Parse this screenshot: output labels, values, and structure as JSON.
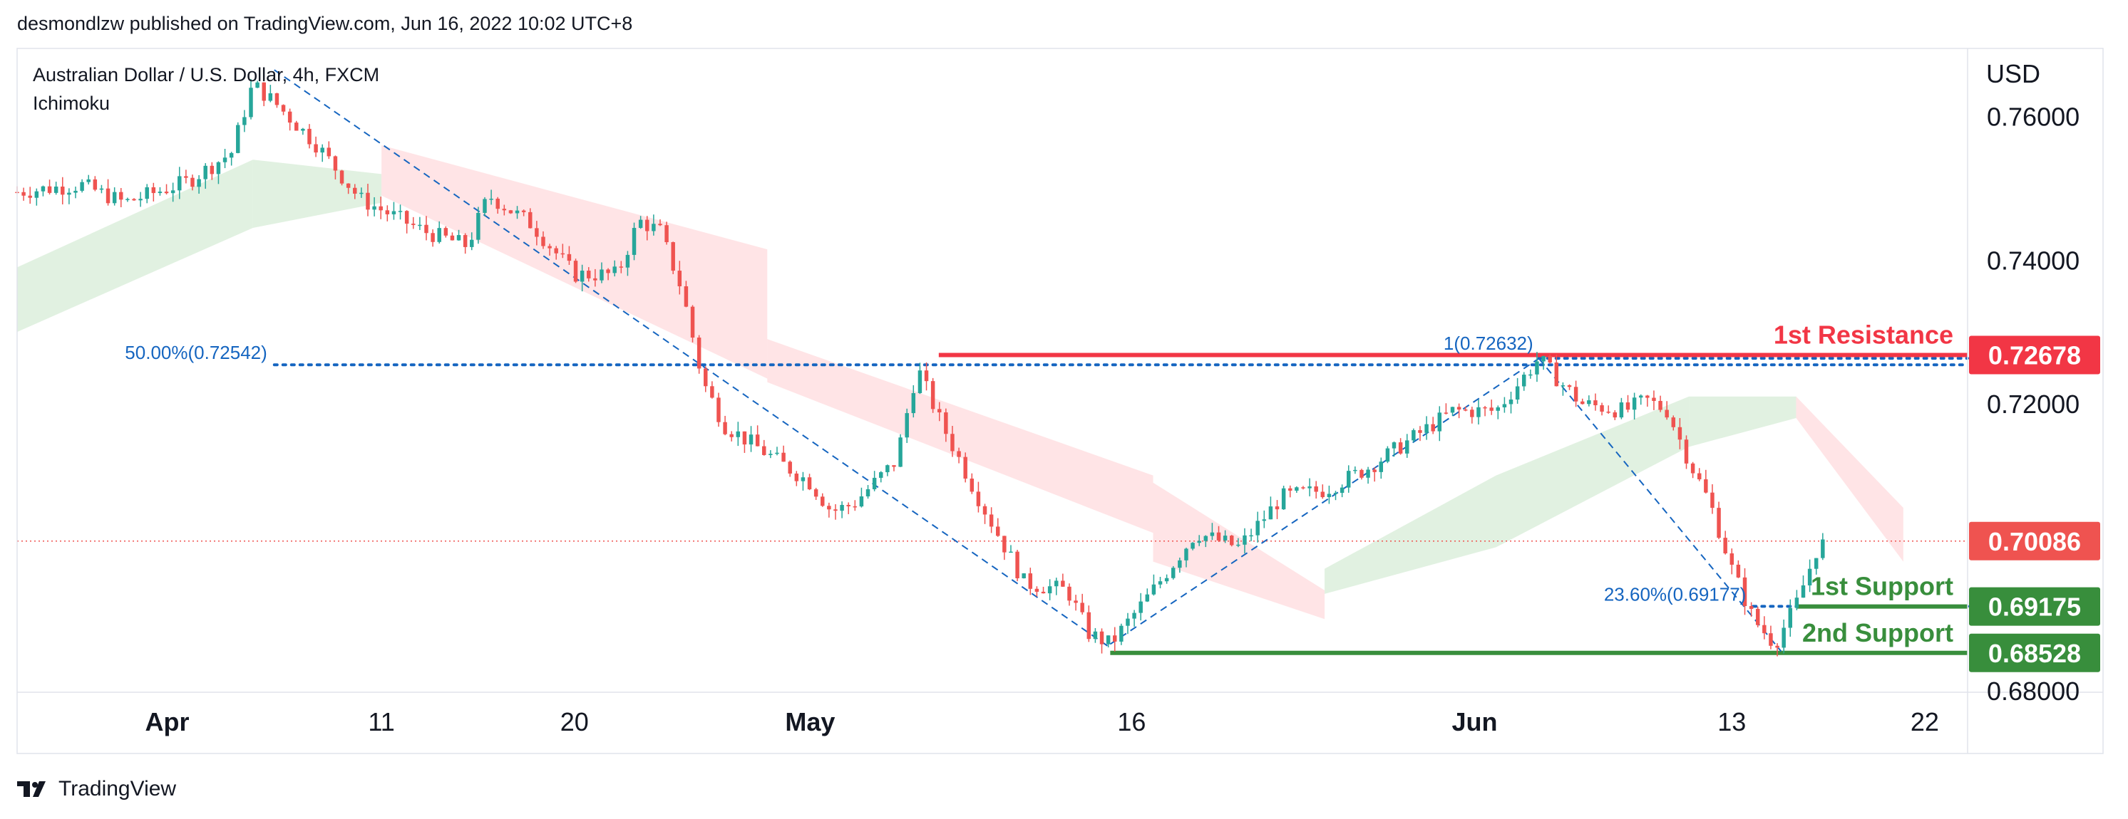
{
  "header": {
    "publisher": "desmondlzw published on TradingView.com, Jun 16, 2022 10:02 UTC+8",
    "symbol": "Australian Dollar / U.S. Dollar, 4h, FXCM",
    "indicator": "Ichimoku"
  },
  "footer": {
    "brand": "TradingView",
    "logo_icon": "tradingview-logo-icon"
  },
  "colors": {
    "up": "#26a69a",
    "down": "#ef5350",
    "resistance": "#f23645",
    "support": "#388e3c",
    "fib": "#1565c0",
    "cloud_bull": "#c8e6c9",
    "cloud_bear": "#ffcdd2",
    "text": "#131722",
    "grid": "#e0e3eb"
  },
  "chart_data": {
    "type": "candlestick",
    "title": "Australian Dollar / U.S. Dollar, 4h, FXCM",
    "y_axis_label": "USD",
    "ylim": [
      0.6798,
      0.7695
    ],
    "xlim_days": [
      -7,
      84
    ],
    "y_ticks": [
      "0.76000",
      "0.74000",
      "0.72000",
      "0.68000"
    ],
    "x_ticks": [
      {
        "label": "Apr",
        "day": 0,
        "bold": true
      },
      {
        "label": "11",
        "day": 10,
        "bold": false
      },
      {
        "label": "20",
        "day": 19,
        "bold": false
      },
      {
        "label": "May",
        "day": 30,
        "bold": true
      },
      {
        "label": "16",
        "day": 45,
        "bold": false
      },
      {
        "label": "Jun",
        "day": 61,
        "bold": true
      },
      {
        "label": "13",
        "day": 73,
        "bold": false
      },
      {
        "label": "22",
        "day": 82,
        "bold": false
      }
    ],
    "price_path": [
      {
        "day": -7,
        "price": 0.7495
      },
      {
        "day": -4,
        "price": 0.7505
      },
      {
        "day": -2,
        "price": 0.748
      },
      {
        "day": 1,
        "price": 0.751
      },
      {
        "day": 3,
        "price": 0.755
      },
      {
        "day": 4,
        "price": 0.7645
      },
      {
        "day": 5,
        "price": 0.762
      },
      {
        "day": 7,
        "price": 0.756
      },
      {
        "day": 9,
        "price": 0.7485
      },
      {
        "day": 12,
        "price": 0.744
      },
      {
        "day": 14,
        "price": 0.742
      },
      {
        "day": 15,
        "price": 0.749
      },
      {
        "day": 17,
        "price": 0.745
      },
      {
        "day": 19,
        "price": 0.738
      },
      {
        "day": 21,
        "price": 0.738
      },
      {
        "day": 22,
        "price": 0.7455
      },
      {
        "day": 23,
        "price": 0.744
      },
      {
        "day": 24,
        "price": 0.736
      },
      {
        "day": 25,
        "price": 0.723
      },
      {
        "day": 26,
        "price": 0.717
      },
      {
        "day": 28,
        "price": 0.713
      },
      {
        "day": 30,
        "price": 0.709
      },
      {
        "day": 31,
        "price": 0.705
      },
      {
        "day": 32,
        "price": 0.706
      },
      {
        "day": 34,
        "price": 0.712
      },
      {
        "day": 35,
        "price": 0.725
      },
      {
        "day": 36,
        "price": 0.718
      },
      {
        "day": 38,
        "price": 0.706
      },
      {
        "day": 40,
        "price": 0.695
      },
      {
        "day": 42,
        "price": 0.694
      },
      {
        "day": 43,
        "price": 0.688
      },
      {
        "day": 44,
        "price": 0.6865
      },
      {
        "day": 46,
        "price": 0.694
      },
      {
        "day": 48,
        "price": 0.702
      },
      {
        "day": 50,
        "price": 0.7
      },
      {
        "day": 52,
        "price": 0.707
      },
      {
        "day": 54,
        "price": 0.708
      },
      {
        "day": 56,
        "price": 0.711
      },
      {
        "day": 58,
        "price": 0.715
      },
      {
        "day": 60,
        "price": 0.719
      },
      {
        "day": 62,
        "price": 0.719
      },
      {
        "day": 64,
        "price": 0.7263
      },
      {
        "day": 65,
        "price": 0.723
      },
      {
        "day": 66,
        "price": 0.72
      },
      {
        "day": 68,
        "price": 0.719
      },
      {
        "day": 69,
        "price": 0.7205
      },
      {
        "day": 70,
        "price": 0.719
      },
      {
        "day": 71,
        "price": 0.712
      },
      {
        "day": 72,
        "price": 0.706
      },
      {
        "day": 73,
        "price": 0.697
      },
      {
        "day": 74,
        "price": 0.69
      },
      {
        "day": 75,
        "price": 0.6865
      },
      {
        "day": 76,
        "price": 0.692
      },
      {
        "day": 77,
        "price": 0.7
      },
      {
        "day": 77.5,
        "price": 0.7009
      }
    ],
    "cloud": [
      {
        "start": -7,
        "end": 4,
        "type": "bull",
        "top": [
          0.739,
          0.754
        ],
        "bottom": [
          0.73,
          0.7445
        ]
      },
      {
        "start": 4,
        "end": 10,
        "type": "bull",
        "top": [
          0.754,
          0.752
        ],
        "bottom": [
          0.7445,
          0.748
        ]
      },
      {
        "start": 10,
        "end": 28,
        "type": "bear",
        "top": [
          0.756,
          0.7415
        ],
        "bottom": [
          0.749,
          0.7235
        ]
      },
      {
        "start": 28,
        "end": 46,
        "type": "bear",
        "top": [
          0.729,
          0.71
        ],
        "bottom": [
          0.723,
          0.702
        ]
      },
      {
        "start": 46,
        "end": 54,
        "type": "bear",
        "top": [
          0.709,
          0.694
        ],
        "bottom": [
          0.698,
          0.69
        ]
      },
      {
        "start": 54,
        "end": 62,
        "type": "bull",
        "top": [
          0.697,
          0.71
        ],
        "bottom": [
          0.6935,
          0.7
        ]
      },
      {
        "start": 62,
        "end": 71,
        "type": "bull",
        "top": [
          0.71,
          0.721
        ],
        "bottom": [
          0.7,
          0.714
        ]
      },
      {
        "start": 71,
        "end": 76,
        "type": "bull",
        "top": [
          0.721,
          0.721
        ],
        "bottom": [
          0.714,
          0.718
        ]
      },
      {
        "start": 76,
        "end": 81,
        "type": "bear",
        "top": [
          0.721,
          0.7055
        ],
        "bottom": [
          0.718,
          0.698
        ]
      }
    ],
    "levels": [
      {
        "name": "1st Resistance",
        "value": "0.72678",
        "price": 0.72678,
        "style": "resistance",
        "x_start": 36
      },
      {
        "name": "1st Support",
        "value": "0.69175",
        "price": 0.69175,
        "style": "support",
        "x_start": 76
      },
      {
        "name": "2nd Support",
        "value": "0.68528",
        "price": 0.68528,
        "style": "support",
        "x_start": 44
      }
    ],
    "current_price": {
      "value": "0.70086",
      "price": 0.70086
    },
    "fib_lines": [
      {
        "label": "50.00%(0.72542)",
        "price": 0.72542,
        "x_start": 5
      },
      {
        "label": "1(0.72632)",
        "price": 0.72632,
        "x_start": 64
      },
      {
        "label": "23.60%(0.69177)",
        "price": 0.69177,
        "x_start": 74
      }
    ],
    "trend_lines": [
      {
        "from": [
          5,
          0.7665
        ],
        "to": [
          44,
          0.686
        ]
      },
      {
        "from": [
          44,
          0.6865
        ],
        "to": [
          64,
          0.7263
        ]
      },
      {
        "from": [
          64,
          0.7263
        ],
        "to": [
          75.3,
          0.6855
        ]
      }
    ]
  }
}
